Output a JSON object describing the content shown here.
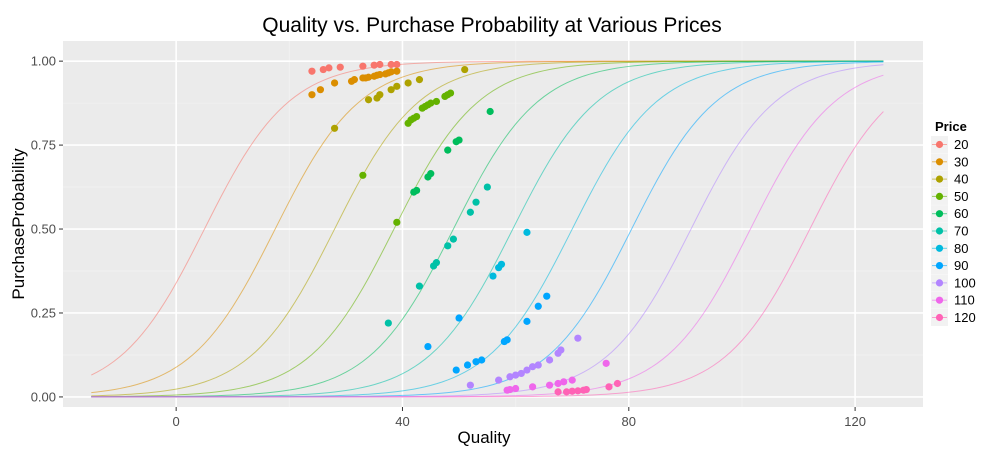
{
  "chart_data": {
    "type": "scatter",
    "title": "Quality vs. Purchase Probability at Various Prices",
    "xlabel": "Quality",
    "ylabel": "PurchaseProbability",
    "xlim": [
      -20,
      132
    ],
    "ylim": [
      -0.03,
      1.06
    ],
    "x_ticks": [
      0,
      40,
      80,
      120
    ],
    "x_tick_labels": [
      "0",
      "40",
      "80",
      "120"
    ],
    "y_ticks": [
      0,
      0.25,
      0.5,
      0.75,
      1.0
    ],
    "y_tick_labels": [
      "0.00",
      "0.25",
      "0.50",
      "0.75",
      "1.00"
    ],
    "grid": true,
    "legend": {
      "title": "Price",
      "position": "right"
    },
    "curve_x_range": [
      -15,
      125
    ],
    "series": [
      {
        "name": "20",
        "color": "#F8766D",
        "curve": {
          "midpoint": 5,
          "scale": 7.5
        },
        "points": [
          [
            24,
            0.97
          ],
          [
            26,
            0.975
          ],
          [
            27,
            0.98
          ],
          [
            29,
            0.982
          ],
          [
            33,
            0.985
          ],
          [
            35,
            0.988
          ],
          [
            36,
            0.99
          ],
          [
            38,
            0.99
          ],
          [
            39,
            0.99
          ]
        ]
      },
      {
        "name": "30",
        "color": "#DB8E00",
        "curve": {
          "midpoint": 17.5,
          "scale": 7.5
        },
        "points": [
          [
            24,
            0.9
          ],
          [
            25.5,
            0.915
          ],
          [
            28,
            0.935
          ],
          [
            31,
            0.94
          ],
          [
            31.5,
            0.945
          ],
          [
            33,
            0.95
          ],
          [
            33.5,
            0.95
          ],
          [
            34,
            0.952
          ],
          [
            35,
            0.955
          ],
          [
            35.5,
            0.958
          ],
          [
            36,
            0.96
          ],
          [
            37,
            0.962
          ],
          [
            37.5,
            0.965
          ],
          [
            38,
            0.968
          ],
          [
            39,
            0.97
          ]
        ]
      },
      {
        "name": "40",
        "color": "#AEA200",
        "curve": {
          "midpoint": 28,
          "scale": 7.5
        },
        "points": [
          [
            28,
            0.8
          ],
          [
            34,
            0.885
          ],
          [
            35.5,
            0.89
          ],
          [
            36,
            0.9
          ],
          [
            38,
            0.915
          ],
          [
            39,
            0.925
          ],
          [
            41,
            0.935
          ],
          [
            43,
            0.945
          ],
          [
            51,
            0.975
          ]
        ]
      },
      {
        "name": "50",
        "color": "#64B200",
        "curve": {
          "midpoint": 38.5,
          "scale": 7.5
        },
        "points": [
          [
            33,
            0.66
          ],
          [
            39,
            0.52
          ],
          [
            41,
            0.815
          ],
          [
            41.5,
            0.825
          ],
          [
            42,
            0.83
          ],
          [
            42.5,
            0.835
          ],
          [
            43.5,
            0.86
          ],
          [
            44,
            0.865
          ],
          [
            44.5,
            0.87
          ],
          [
            45,
            0.875
          ],
          [
            46,
            0.88
          ],
          [
            47.5,
            0.895
          ],
          [
            48,
            0.9
          ],
          [
            48.5,
            0.905
          ]
        ]
      },
      {
        "name": "60",
        "color": "#00BD5C",
        "curve": {
          "midpoint": 49,
          "scale": 7.5
        },
        "points": [
          [
            42,
            0.61
          ],
          [
            42.5,
            0.615
          ],
          [
            44.5,
            0.655
          ],
          [
            45,
            0.665
          ],
          [
            48,
            0.735
          ],
          [
            49.5,
            0.76
          ],
          [
            50,
            0.765
          ],
          [
            55.5,
            0.85
          ]
        ]
      },
      {
        "name": "70",
        "color": "#00C1A7",
        "curve": {
          "midpoint": 59.5,
          "scale": 7.5
        },
        "points": [
          [
            37.5,
            0.22
          ],
          [
            43,
            0.33
          ],
          [
            45.5,
            0.39
          ],
          [
            46,
            0.4
          ],
          [
            48,
            0.45
          ],
          [
            49,
            0.47
          ],
          [
            52,
            0.55
          ],
          [
            53,
            0.58
          ],
          [
            55,
            0.625
          ]
        ]
      },
      {
        "name": "80",
        "color": "#00BADE",
        "curve": {
          "midpoint": 70,
          "scale": 7.5
        },
        "points": [
          [
            56,
            0.36
          ],
          [
            57,
            0.385
          ],
          [
            57.5,
            0.395
          ],
          [
            62,
            0.49
          ]
        ]
      },
      {
        "name": "90",
        "color": "#00A6FF",
        "curve": {
          "midpoint": 80.5,
          "scale": 7.5
        },
        "points": [
          [
            44.5,
            0.15
          ],
          [
            50,
            0.235
          ],
          [
            49.5,
            0.08
          ],
          [
            51.5,
            0.095
          ],
          [
            53,
            0.105
          ],
          [
            54,
            0.11
          ],
          [
            58,
            0.165
          ],
          [
            58.5,
            0.17
          ],
          [
            62,
            0.225
          ],
          [
            64,
            0.27
          ],
          [
            65.5,
            0.3
          ]
        ]
      },
      {
        "name": "100",
        "color": "#B385FF",
        "curve": {
          "midpoint": 91,
          "scale": 7.5
        },
        "points": [
          [
            52,
            0.035
          ],
          [
            57,
            0.05
          ],
          [
            59,
            0.06
          ],
          [
            60,
            0.065
          ],
          [
            61,
            0.07
          ],
          [
            62,
            0.08
          ],
          [
            63,
            0.09
          ],
          [
            64,
            0.095
          ],
          [
            66,
            0.11
          ],
          [
            67.5,
            0.13
          ],
          [
            68,
            0.14
          ],
          [
            71,
            0.175
          ]
        ]
      },
      {
        "name": "110",
        "color": "#EF67EB",
        "curve": {
          "midpoint": 101.5,
          "scale": 7.5
        },
        "points": [
          [
            58.5,
            0.02
          ],
          [
            59,
            0.022
          ],
          [
            60,
            0.025
          ],
          [
            63,
            0.03
          ],
          [
            66,
            0.035
          ],
          [
            67.5,
            0.04
          ],
          [
            68.5,
            0.045
          ],
          [
            70,
            0.05
          ],
          [
            76,
            0.1
          ]
        ]
      },
      {
        "name": "120",
        "color": "#FF63B6",
        "curve": {
          "midpoint": 112,
          "scale": 7.5
        },
        "points": [
          [
            67.5,
            0.015
          ],
          [
            69,
            0.015
          ],
          [
            70,
            0.017
          ],
          [
            71,
            0.018
          ],
          [
            72,
            0.02
          ],
          [
            72.5,
            0.022
          ],
          [
            76.5,
            0.03
          ],
          [
            78,
            0.04
          ]
        ]
      }
    ]
  }
}
